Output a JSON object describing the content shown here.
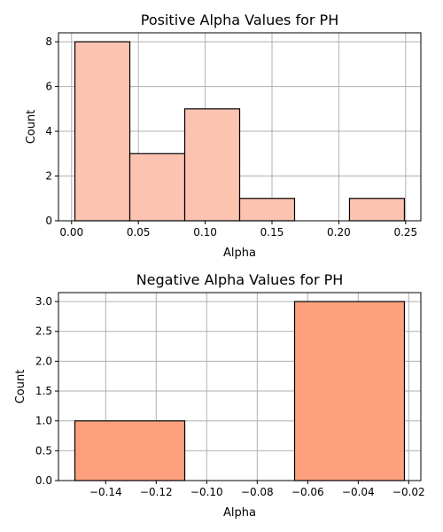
{
  "chart_data": [
    {
      "type": "bar",
      "title": "Positive Alpha Values for PH",
      "xlabel": "Alpha",
      "ylabel": "Count",
      "bin_edges": [
        0.0025,
        0.0436,
        0.0847,
        0.1258,
        0.1669,
        0.208,
        0.2491
      ],
      "values": [
        8,
        3,
        5,
        1,
        0,
        1
      ],
      "xlim": [
        -0.0098,
        0.2614
      ],
      "ylim": [
        0,
        8.4
      ],
      "xticks": [
        0.0,
        0.05,
        0.1,
        0.15,
        0.2,
        0.25
      ],
      "xtick_labels": [
        "0.00",
        "0.05",
        "0.10",
        "0.15",
        "0.20",
        "0.25"
      ],
      "yticks": [
        0,
        2,
        4,
        6,
        8
      ],
      "ytick_labels": [
        "0",
        "2",
        "4",
        "6",
        "8"
      ],
      "grid": true,
      "color": "#fcc4b0"
    },
    {
      "type": "bar",
      "title": "Negative Alpha Values for PH",
      "xlabel": "Alpha",
      "ylabel": "Count",
      "bin_edges": [
        -0.1522,
        -0.1087,
        -0.0652,
        -0.0217
      ],
      "values": [
        1,
        0,
        3
      ],
      "xlim": [
        -0.1587,
        -0.0152
      ],
      "ylim": [
        0,
        3.15
      ],
      "xticks": [
        -0.14,
        -0.12,
        -0.1,
        -0.08,
        -0.06,
        -0.04,
        -0.02
      ],
      "xtick_labels": [
        "−0.14",
        "−0.12",
        "−0.10",
        "−0.08",
        "−0.06",
        "−0.04",
        "−0.02"
      ],
      "yticks": [
        0,
        0.5,
        1.0,
        1.5,
        2.0,
        2.5,
        3.0
      ],
      "ytick_labels": [
        "0.0",
        "0.5",
        "1.0",
        "1.5",
        "2.0",
        "2.5",
        "3.0"
      ],
      "grid": true,
      "color": "#fca07e"
    }
  ]
}
